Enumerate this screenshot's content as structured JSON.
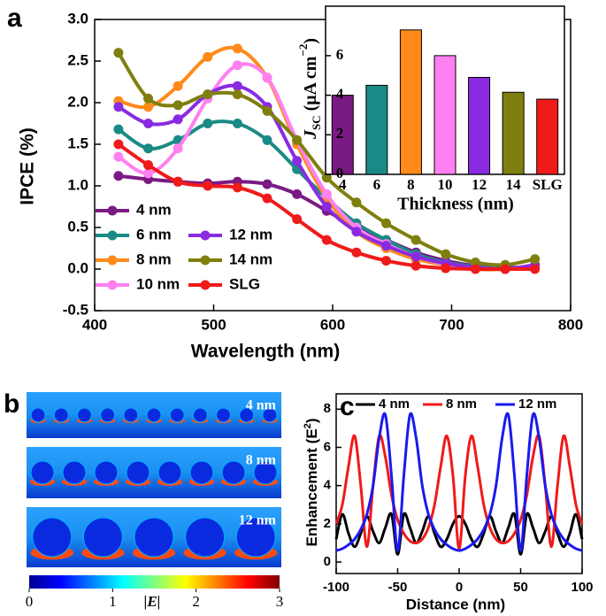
{
  "chart_data": [
    {
      "type": "line",
      "panel_label": "a",
      "x_label": "Wavelength (nm)",
      "y_label": "IPCE (%)",
      "x": [
        420,
        445,
        470,
        495,
        520,
        545,
        570,
        595,
        620,
        645,
        670,
        695,
        720,
        745,
        770
      ],
      "series": [
        {
          "name": "4 nm",
          "color": "#7a1a84",
          "values": [
            1.12,
            1.08,
            1.05,
            1.03,
            1.05,
            1.02,
            0.9,
            0.7,
            0.5,
            0.35,
            0.2,
            0.1,
            0.04,
            0.02,
            0.02
          ]
        },
        {
          "name": "6 nm",
          "color": "#1a8a86",
          "values": [
            1.68,
            1.45,
            1.55,
            1.75,
            1.75,
            1.55,
            1.2,
            0.85,
            0.55,
            0.35,
            0.18,
            0.08,
            0.03,
            0.0,
            0.02
          ]
        },
        {
          "name": "8 nm",
          "color": "#ff8a1a",
          "values": [
            2.02,
            1.95,
            2.2,
            2.55,
            2.65,
            2.3,
            1.5,
            0.85,
            0.45,
            0.25,
            0.12,
            0.05,
            0.0,
            0.0,
            0.05
          ]
        },
        {
          "name": "10 nm",
          "color": "#ff80f0",
          "values": [
            1.35,
            1.15,
            1.45,
            2.05,
            2.45,
            2.3,
            1.55,
            0.9,
            0.5,
            0.3,
            0.15,
            0.06,
            0.02,
            0.0,
            0.03
          ]
        },
        {
          "name": "12 nm",
          "color": "#8a2be2",
          "values": [
            1.95,
            1.75,
            1.8,
            2.1,
            2.2,
            1.95,
            1.3,
            0.75,
            0.45,
            0.28,
            0.15,
            0.07,
            0.02,
            0.0,
            0.05
          ]
        },
        {
          "name": "14 nm",
          "color": "#7f7f10",
          "values": [
            2.6,
            2.05,
            1.97,
            2.1,
            2.1,
            1.9,
            1.55,
            1.1,
            0.8,
            0.55,
            0.35,
            0.18,
            0.08,
            0.05,
            0.12
          ]
        },
        {
          "name": "SLG",
          "color": "#f01a1a",
          "values": [
            1.5,
            1.25,
            1.05,
            1.0,
            0.98,
            0.85,
            0.6,
            0.35,
            0.2,
            0.1,
            0.04,
            0.01,
            0.0,
            0.0,
            0.0
          ]
        }
      ],
      "xlim": [
        400,
        800
      ],
      "xticks": [
        400,
        500,
        600,
        700,
        800
      ],
      "ylim": [
        -0.5,
        3.0
      ],
      "yticks": [
        -0.5,
        {
          "value": 0,
          "label": "0.0"
        },
        0.5,
        {
          "value": 1,
          "label": "1.0"
        },
        1.5,
        {
          "value": 2,
          "label": "2.0"
        },
        2.5,
        {
          "value": 3,
          "label": "3.0"
        }
      ]
    },
    {
      "type": "bar",
      "x_label": "Thickness (nm)",
      "y_label_parts": [
        "J",
        "SC",
        " (μA cm",
        "−2",
        ")"
      ],
      "categories": [
        "4",
        "6",
        "8",
        "10",
        "12",
        "14",
        "SLG"
      ],
      "values": [
        4.0,
        4.5,
        7.3,
        6.0,
        4.9,
        4.15,
        3.8
      ],
      "colors": [
        "#7a1a84",
        "#1a8a86",
        "#ff8a1a",
        "#ff80f0",
        "#8a2be2",
        "#7f7f10",
        "#f01a1a"
      ],
      "ylim": [
        0,
        8.5
      ],
      "yticks": [
        0,
        2,
        4,
        6
      ]
    },
    {
      "type": "field_map",
      "panel_label": "b",
      "labels": [
        "4 nm",
        "8 nm",
        "12 nm"
      ],
      "colorbar_label": "|E|",
      "clim": [
        0,
        3
      ],
      "cticks": [
        0,
        1,
        2,
        3
      ]
    },
    {
      "type": "line",
      "panel_label": "c",
      "x_label": "Distance (nm)",
      "y_label_parts": [
        "Enhancement (",
        "E",
        "2",
        ")"
      ],
      "x": [
        -100,
        -95,
        -90,
        -85,
        -80,
        -75,
        -70,
        -65,
        -60,
        -55,
        -50,
        -45,
        -40,
        -35,
        -30,
        -25,
        -20,
        -15,
        -10,
        -5,
        0,
        5,
        10,
        15,
        20,
        25,
        30,
        35,
        40,
        45,
        50,
        55,
        60,
        65,
        70,
        75,
        80,
        85,
        90,
        95,
        100
      ],
      "series": [
        {
          "name": "4 nm",
          "color": "#000000",
          "values": [
            1.2,
            2.5,
            1.5,
            0.8,
            1.5,
            2.4,
            1.6,
            1.0,
            1.8,
            2.5,
            0.4,
            2.5,
            1.8,
            1.0,
            1.6,
            2.4,
            1.5,
            0.8,
            1.2,
            2.0,
            2.4,
            2.0,
            1.2,
            0.8,
            1.5,
            2.4,
            1.6,
            1.0,
            1.8,
            2.5,
            0.4,
            2.5,
            1.8,
            1.0,
            1.6,
            2.4,
            1.5,
            0.8,
            1.5,
            2.5,
            1.2
          ]
        },
        {
          "name": "8 nm",
          "color": "#f01a1a",
          "values": [
            2.0,
            3.0,
            5.0,
            6.6,
            4.0,
            0.8,
            4.0,
            6.6,
            5.5,
            3.5,
            2.2,
            1.5,
            1.1,
            1.0,
            1.2,
            1.8,
            3.0,
            5.0,
            6.6,
            4.5,
            0.7,
            4.5,
            6.6,
            5.0,
            3.0,
            1.8,
            1.2,
            1.0,
            1.1,
            1.5,
            2.2,
            3.5,
            5.5,
            6.6,
            4.0,
            0.8,
            4.0,
            6.6,
            5.0,
            3.0,
            2.0
          ]
        },
        {
          "name": "12 nm",
          "color": "#1a1aee",
          "values": [
            0.6,
            0.7,
            0.9,
            1.2,
            1.7,
            2.5,
            4.0,
            6.5,
            7.7,
            4.5,
            0.6,
            4.5,
            7.7,
            6.5,
            4.0,
            2.5,
            1.7,
            1.2,
            0.9,
            0.7,
            0.6,
            0.7,
            0.9,
            1.2,
            1.7,
            2.5,
            4.0,
            6.5,
            7.7,
            4.5,
            0.6,
            4.5,
            7.7,
            6.5,
            4.0,
            2.5,
            1.7,
            1.2,
            0.9,
            0.7,
            0.6
          ]
        }
      ],
      "xlim": [
        -100,
        100
      ],
      "xticks": [
        -100,
        -50,
        0,
        50,
        100
      ],
      "ylim": [
        -0.6,
        8.8
      ],
      "yticks": [
        0,
        2,
        4,
        6,
        8
      ]
    }
  ]
}
